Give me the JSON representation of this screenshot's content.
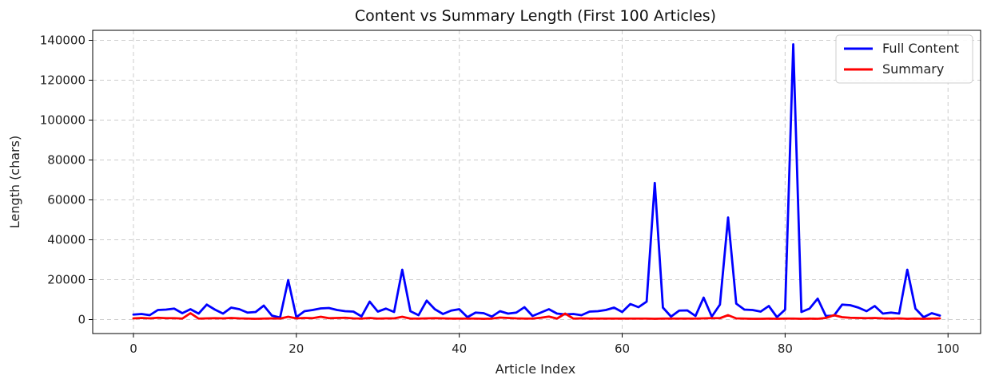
{
  "chart_data": {
    "type": "line",
    "title": "Content vs Summary Length (First 100 Articles)",
    "xlabel": "Article Index",
    "ylabel": "Length (chars)",
    "xlim": [
      -5,
      104
    ],
    "ylim": [
      -7000,
      145000
    ],
    "xticks": [
      0,
      20,
      40,
      60,
      80,
      100
    ],
    "yticks": [
      0,
      20000,
      40000,
      60000,
      80000,
      100000,
      120000,
      140000
    ],
    "grid": true,
    "legend_position": "top-right",
    "series": [
      {
        "name": "Full Content",
        "color": "#0000ff",
        "values": [
          2500,
          2800,
          2200,
          4800,
          5000,
          5500,
          3200,
          5200,
          3000,
          7500,
          5000,
          3000,
          6000,
          5200,
          3500,
          3800,
          7000,
          2000,
          1000,
          19800,
          1200,
          4200,
          4800,
          5600,
          5800,
          4800,
          4200,
          4000,
          1600,
          9000,
          4000,
          5500,
          3800,
          25000,
          4200,
          2200,
          9500,
          5200,
          2800,
          4500,
          5200,
          1200,
          3500,
          3200,
          1500,
          4200,
          3000,
          3500,
          6200,
          1800,
          3500,
          5200,
          3000,
          2600,
          2800,
          2200,
          4000,
          4200,
          4800,
          6000,
          3800,
          7800,
          6200,
          9000,
          68500,
          6000,
          1500,
          4500,
          4600,
          1800,
          11000,
          1500,
          7500,
          51200,
          8000,
          5000,
          4800,
          4000,
          6800,
          1200,
          5000,
          138000,
          3800,
          5500,
          10500,
          1800,
          2000,
          7500,
          7200,
          6000,
          4200,
          6800,
          3000,
          3500,
          3000,
          25000,
          5500,
          1200,
          3200,
          2000
        ]
      },
      {
        "name": "Summary",
        "color": "#ff0000",
        "values": [
          600,
          800,
          600,
          900,
          700,
          700,
          500,
          3200,
          500,
          600,
          700,
          600,
          800,
          600,
          500,
          400,
          500,
          600,
          500,
          1400,
          600,
          800,
          700,
          1400,
          700,
          800,
          900,
          600,
          500,
          800,
          500,
          600,
          600,
          1400,
          500,
          500,
          600,
          700,
          600,
          500,
          500,
          500,
          500,
          400,
          500,
          1000,
          800,
          600,
          500,
          500,
          900,
          1500,
          500,
          3000,
          500,
          600,
          500,
          500,
          500,
          500,
          500,
          500,
          500,
          500,
          400,
          500,
          500,
          500,
          500,
          500,
          600,
          700,
          700,
          2200,
          600,
          500,
          400,
          400,
          500,
          400,
          500,
          500,
          400,
          500,
          400,
          800,
          2200,
          1200,
          900,
          800,
          700,
          800,
          600,
          500,
          600,
          400,
          500,
          400,
          500,
          600
        ]
      }
    ]
  }
}
